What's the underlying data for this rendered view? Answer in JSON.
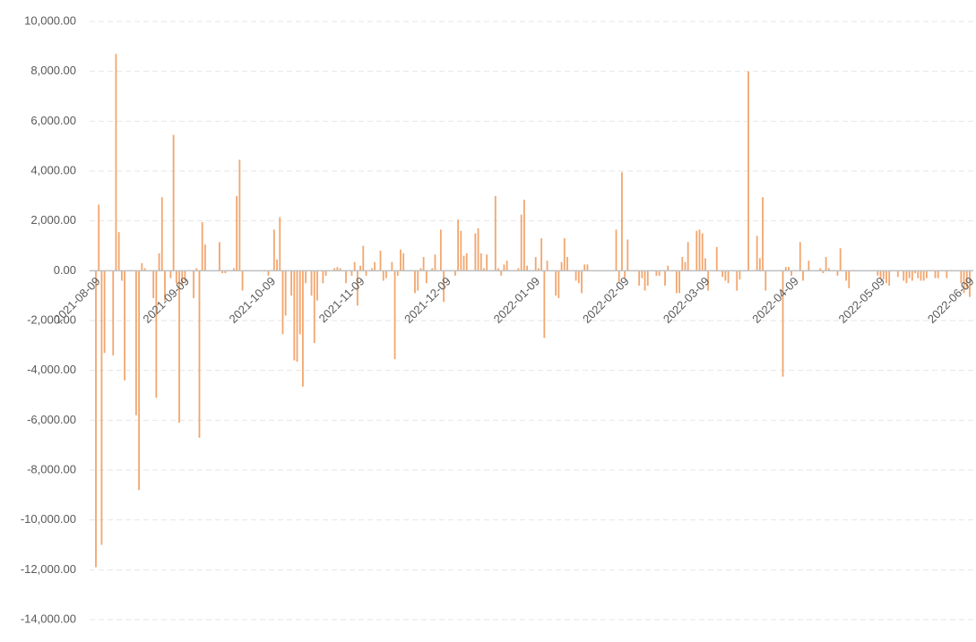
{
  "chart_data": {
    "type": "bar",
    "color": "#f2a66e",
    "grid": true,
    "ylim": [
      -14000,
      10000
    ],
    "yticks": [
      {
        "value": -14000,
        "label": "-14,000.00"
      },
      {
        "value": -12000,
        "label": "-12,000.00"
      },
      {
        "value": -10000,
        "label": "-10,000.00"
      },
      {
        "value": -8000,
        "label": "-8,000.00"
      },
      {
        "value": -6000,
        "label": "-6,000.00"
      },
      {
        "value": -4000,
        "label": "-4,000.00"
      },
      {
        "value": -2000,
        "label": "-2,000.00"
      },
      {
        "value": 0,
        "label": "0.00"
      },
      {
        "value": 2000,
        "label": "2,000.00"
      },
      {
        "value": 4000,
        "label": "4,000.00"
      },
      {
        "value": 6000,
        "label": "6,000.00"
      },
      {
        "value": 8000,
        "label": "8,000.00"
      },
      {
        "value": 10000,
        "label": "10,000.00"
      }
    ],
    "categories": [
      "2021-08-09",
      null,
      null,
      null,
      null,
      null,
      null,
      null,
      null,
      null,
      null,
      null,
      null,
      null,
      null,
      null,
      null,
      null,
      null,
      null,
      null,
      null,
      null,
      null,
      null,
      null,
      null,
      null,
      null,
      null,
      null,
      "2021-09-09",
      null,
      null,
      null,
      null,
      null,
      null,
      null,
      null,
      null,
      null,
      null,
      null,
      null,
      null,
      null,
      null,
      null,
      null,
      null,
      null,
      null,
      null,
      null,
      null,
      null,
      null,
      null,
      null,
      null,
      "2021-10-09",
      null,
      null,
      null,
      null,
      null,
      null,
      null,
      null,
      null,
      null,
      null,
      null,
      null,
      null,
      null,
      null,
      null,
      null,
      null,
      null,
      null,
      null,
      null,
      null,
      null,
      null,
      null,
      null,
      null,
      null,
      "2021-11-09",
      null,
      null,
      null,
      null,
      null,
      null,
      null,
      null,
      null,
      null,
      null,
      null,
      null,
      null,
      null,
      null,
      null,
      null,
      null,
      null,
      null,
      null,
      null,
      null,
      null,
      null,
      null,
      null,
      null,
      "2021-12-09",
      null,
      null,
      null,
      null,
      null,
      null,
      null,
      null,
      null,
      null,
      null,
      null,
      null,
      null,
      null,
      null,
      null,
      null,
      null,
      null,
      null,
      null,
      null,
      null,
      null,
      null,
      null,
      null,
      null,
      null,
      "2022-01-09",
      null,
      null,
      null,
      null,
      null,
      null,
      null,
      null,
      null,
      null,
      null,
      null,
      null,
      null,
      null,
      null,
      null,
      null,
      null,
      null,
      null,
      null,
      null,
      null,
      null,
      null,
      null,
      null,
      null,
      null,
      "2022-02-09",
      null,
      null,
      null,
      null,
      null,
      null,
      null,
      null,
      null,
      null,
      null,
      null,
      null,
      null,
      null,
      null,
      null,
      null,
      null,
      null,
      null,
      null,
      null,
      null,
      null,
      null,
      null,
      "2022-03-09",
      null,
      null,
      null,
      null,
      null,
      null,
      null,
      null,
      null,
      null,
      null,
      null,
      null,
      null,
      null,
      null,
      null,
      null,
      null,
      null,
      null,
      null,
      null,
      null,
      null,
      null,
      null,
      null,
      null,
      null,
      "2022-04-09",
      null,
      null,
      null,
      null,
      null,
      null,
      null,
      null,
      null,
      null,
      null,
      null,
      null,
      null,
      null,
      null,
      null,
      null,
      null,
      null,
      null,
      null,
      null,
      null,
      null,
      null,
      null,
      null,
      null,
      "2022-05-09",
      null,
      null,
      null,
      null,
      null,
      null,
      null,
      null,
      null,
      null,
      null,
      null,
      null,
      null,
      null,
      null,
      null,
      null,
      null,
      null,
      null,
      null,
      null,
      null,
      null,
      null,
      null,
      null,
      null,
      null,
      "2022-06-09"
    ],
    "values": [
      -11900,
      2650,
      -11000,
      -3300,
      0,
      0,
      -3400,
      8700,
      1550,
      -400,
      -4400,
      0,
      0,
      0,
      -5800,
      -8800,
      300,
      100,
      0,
      0,
      -1100,
      -5100,
      700,
      2950,
      -1200,
      0,
      -300,
      5450,
      -500,
      -6100,
      -600,
      -400,
      0,
      0,
      -1100,
      100,
      -6700,
      1950,
      1050,
      0,
      0,
      0,
      0,
      1150,
      -100,
      -100,
      0,
      0,
      100,
      3000,
      4450,
      -800,
      0,
      0,
      0,
      0,
      0,
      0,
      0,
      0,
      -200,
      0,
      1650,
      450,
      2150,
      -2550,
      -1800,
      0,
      -1000,
      -3600,
      -3650,
      -2550,
      -4650,
      -500,
      0,
      -1000,
      -2900,
      -1200,
      0,
      -500,
      -200,
      0,
      0,
      100,
      150,
      100,
      0,
      -500,
      0,
      -200,
      350,
      -1400,
      200,
      1000,
      -200,
      0,
      100,
      350,
      0,
      800,
      -400,
      -300,
      0,
      350,
      -3550,
      -200,
      850,
      700,
      0,
      0,
      0,
      -900,
      -800,
      100,
      550,
      -500,
      0,
      100,
      650,
      0,
      1650,
      -1250,
      0,
      0,
      0,
      -200,
      2050,
      1600,
      600,
      700,
      0,
      0,
      1500,
      1700,
      700,
      100,
      650,
      0,
      0,
      3000,
      100,
      -200,
      250,
      400,
      0,
      0,
      0,
      100,
      2250,
      2850,
      200,
      0,
      0,
      550,
      100,
      1300,
      -2700,
      400,
      0,
      0,
      -1000,
      -1100,
      350,
      1300,
      550,
      0,
      0,
      -400,
      -500,
      -900,
      250,
      250,
      0,
      0,
      0,
      0,
      0,
      0,
      0,
      0,
      0,
      1650,
      -500,
      3950,
      -300,
      1250,
      0,
      0,
      0,
      -600,
      -300,
      -800,
      -600,
      0,
      0,
      -200,
      -200,
      0,
      -600,
      200,
      0,
      0,
      -900,
      -900,
      550,
      350,
      1150,
      0,
      0,
      1600,
      1650,
      1500,
      500,
      -800,
      0,
      0,
      950,
      0,
      -250,
      -400,
      -500,
      0,
      0,
      -800,
      -350,
      0,
      0,
      8000,
      0,
      0,
      1400,
      500,
      2950,
      -800,
      0,
      0,
      0,
      0,
      0,
      -4250,
      150,
      150,
      -200,
      0,
      0,
      1150,
      -400,
      0,
      400,
      0,
      0,
      0,
      100,
      -100,
      550,
      100,
      0,
      0,
      -200,
      900,
      0,
      -400,
      -700,
      0,
      0,
      0,
      0,
      0,
      0,
      0,
      0,
      0,
      -200,
      -300,
      -350,
      -500,
      -600,
      0,
      0,
      -250,
      0,
      -400,
      -500,
      -300,
      -400,
      -100,
      -300,
      -400,
      -400,
      -300,
      0,
      0,
      -300,
      -300,
      0,
      0,
      -300,
      0,
      0,
      0,
      0,
      -500,
      -900,
      -700,
      -1050
    ]
  }
}
